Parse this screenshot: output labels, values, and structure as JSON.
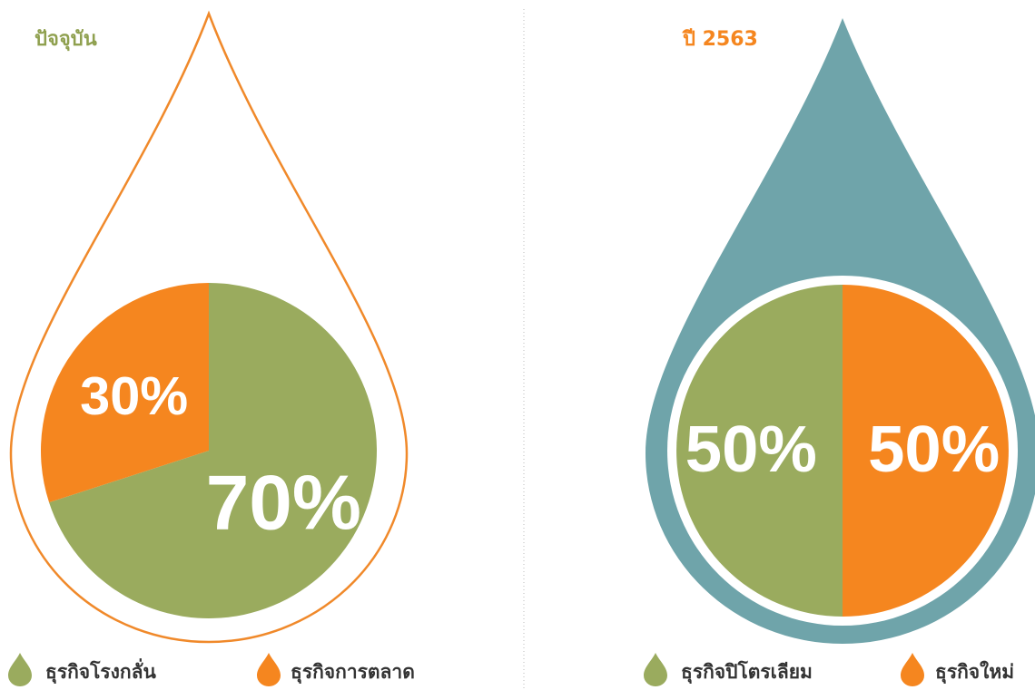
{
  "chart_data": [
    {
      "type": "pie",
      "title": "ปัจจุบัน",
      "title_color": "#8fa04f",
      "categories": [
        "ธุรกิจโรงกลั่น",
        "ธุรกิจการตลาด"
      ],
      "values": [
        70,
        30
      ],
      "value_labels": [
        "70%",
        "30%"
      ],
      "colors": [
        "#9aab5e",
        "#f5861f"
      ]
    },
    {
      "type": "pie",
      "title": "ปี 2563",
      "title_color": "#f5861f",
      "categories": [
        "ธุรกิจปิโตรเลียม",
        "ธุรกิจใหม่"
      ],
      "values": [
        50,
        50
      ],
      "value_labels": [
        "50%",
        "50%"
      ],
      "colors": [
        "#9aab5e",
        "#f5861f"
      ]
    }
  ]
}
